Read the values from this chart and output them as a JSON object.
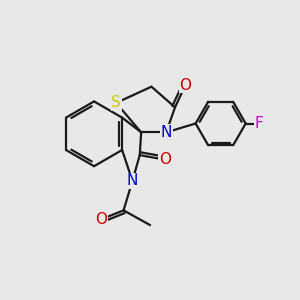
{
  "bg_color": "#e8e8e8",
  "bond_color": "#1a1a1a",
  "bond_width": 1.6,
  "atom_colors": {
    "S": "#cccc00",
    "N": "#0000cc",
    "O": "#cc0000",
    "F": "#cc00cc",
    "C": "#1a1a1a"
  },
  "font_size_atom": 10,
  "fig_size": [
    3.0,
    3.0
  ],
  "dpi": 100,
  "xlim": [
    0,
    10
  ],
  "ylim": [
    0,
    10
  ]
}
